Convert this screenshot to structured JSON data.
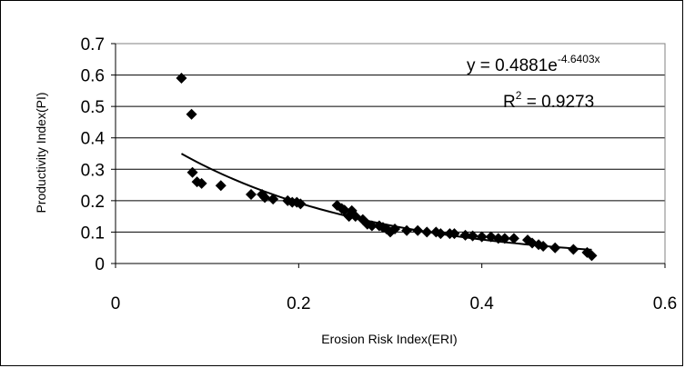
{
  "chart_data": {
    "type": "scatter",
    "title": "",
    "xlabel": "Erosion Risk Index(ERI)",
    "ylabel": "Productivity Index(PI)",
    "xlim": [
      0,
      0.6
    ],
    "ylim": [
      0,
      0.7
    ],
    "xticks": [
      "0",
      "0.2",
      "0.4",
      "0.6"
    ],
    "yticks": [
      "0",
      "0.1",
      "0.2",
      "0.3",
      "0.4",
      "0.5",
      "0.6",
      "0.7"
    ],
    "grid": "horizontal",
    "marker": "diamond",
    "point_color": "#000000",
    "series": [
      {
        "x": [
          0.072,
          0.083,
          0.084,
          0.089,
          0.094,
          0.115,
          0.148,
          0.16,
          0.163,
          0.172,
          0.188,
          0.193,
          0.198,
          0.202,
          0.242,
          0.247,
          0.25,
          0.255,
          0.258,
          0.262,
          0.27,
          0.275,
          0.28,
          0.288,
          0.292,
          0.296,
          0.3,
          0.305,
          0.318,
          0.33,
          0.34,
          0.35,
          0.355,
          0.365,
          0.37,
          0.382,
          0.39,
          0.4,
          0.41,
          0.418,
          0.425,
          0.435,
          0.45,
          0.455,
          0.462,
          0.467,
          0.48,
          0.5,
          0.515,
          0.52
        ],
        "y": [
          0.59,
          0.475,
          0.29,
          0.26,
          0.255,
          0.248,
          0.22,
          0.22,
          0.21,
          0.205,
          0.2,
          0.195,
          0.195,
          0.19,
          0.185,
          0.175,
          0.17,
          0.15,
          0.168,
          0.15,
          0.14,
          0.125,
          0.12,
          0.12,
          0.115,
          0.11,
          0.1,
          0.11,
          0.105,
          0.105,
          0.1,
          0.1,
          0.095,
          0.095,
          0.095,
          0.09,
          0.088,
          0.085,
          0.085,
          0.08,
          0.08,
          0.08,
          0.075,
          0.065,
          0.06,
          0.055,
          0.05,
          0.045,
          0.035,
          0.025
        ]
      }
    ],
    "trendline": {
      "type": "exponential",
      "a": 0.4881,
      "b": -4.6403,
      "x_range": [
        0.072,
        0.52
      ],
      "equation_main": "y = 0.4881e",
      "equation_exponent": "-4.6403x",
      "r2_main": "R",
      "r2_sup": "2",
      "r2_rest": " = 0.9273"
    }
  }
}
